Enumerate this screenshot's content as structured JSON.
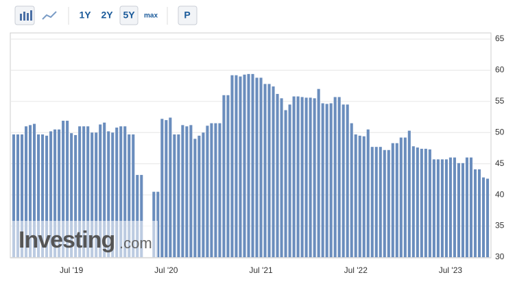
{
  "toolbar": {
    "ranges": [
      "1Y",
      "2Y",
      "5Y",
      "max"
    ],
    "selected": "5Y",
    "button": "P"
  },
  "chart_data": {
    "type": "bar",
    "watermark": [
      "Investing",
      ".com"
    ],
    "categories": [
      null,
      null,
      null,
      null,
      null,
      null,
      null,
      null,
      null,
      null,
      null,
      null,
      null,
      null,
      "Jul '19",
      null,
      null,
      null,
      null,
      null,
      null,
      null,
      null,
      null,
      null,
      null,
      null,
      null,
      null,
      null,
      null,
      null,
      null,
      null,
      null,
      null,
      null,
      "Jul '20",
      null,
      null,
      null,
      null,
      null,
      null,
      null,
      null,
      null,
      null,
      null,
      null,
      null,
      null,
      null,
      null,
      null,
      null,
      null,
      null,
      null,
      null,
      "Jul '21",
      null,
      null,
      null,
      null,
      null,
      null,
      null,
      null,
      null,
      null,
      null,
      null,
      null,
      null,
      null,
      null,
      null,
      null,
      null,
      null,
      null,
      null,
      "Jul '22",
      null,
      null,
      null,
      null,
      null,
      null,
      null,
      null,
      null,
      null,
      null,
      null,
      null,
      null,
      null,
      null,
      null,
      null,
      null,
      null,
      null,
      null,
      "Jul '23",
      null,
      null,
      null,
      null,
      null,
      null,
      null,
      null,
      null
    ],
    "values": [
      49.7,
      49.7,
      49.7,
      51,
      51.2,
      51.4,
      49.7,
      49.7,
      49.5,
      50.2,
      50.5,
      50.5,
      51.9,
      51.9,
      49.9,
      49.6,
      51,
      51,
      51,
      50,
      50,
      51.3,
      51.6,
      50.2,
      50,
      50.8,
      51,
      51,
      49.7,
      49.7,
      43.2,
      43.2,
      null,
      null,
      40.5,
      40.5,
      52.2,
      52,
      52.4,
      49.7,
      49.7,
      51.2,
      51,
      51.2,
      49,
      49.5,
      50,
      51.1,
      51.5,
      51.5,
      51.5,
      56,
      56,
      59.2,
      59.2,
      59,
      59.3,
      59.4,
      59.4,
      58.8,
      58.8,
      57.8,
      57.8,
      57.4,
      56.2,
      55.5,
      53.6,
      54.5,
      55.8,
      55.8,
      55.7,
      55.6,
      55.6,
      55.5,
      57,
      54.7,
      54.6,
      54.7,
      55.7,
      55.7,
      54.5,
      54.5,
      51.5,
      49.7,
      49.5,
      49.4,
      50.5,
      47.7,
      47.7,
      47.7,
      47.2,
      47.2,
      48.3,
      48.3,
      49.2,
      49.2,
      50.3,
      47.8,
      47.6,
      47.4,
      47.4,
      47.3,
      45.7,
      45.7,
      45.7,
      45.7,
      46,
      46,
      45.1,
      45.1,
      46,
      46,
      44.1,
      44.1,
      42.8,
      42.6
    ],
    "color": "#6a8dbd",
    "ylim": [
      30,
      65
    ],
    "yticks": [
      30,
      35,
      40,
      45,
      50,
      55,
      60,
      65
    ],
    "grid": true
  }
}
